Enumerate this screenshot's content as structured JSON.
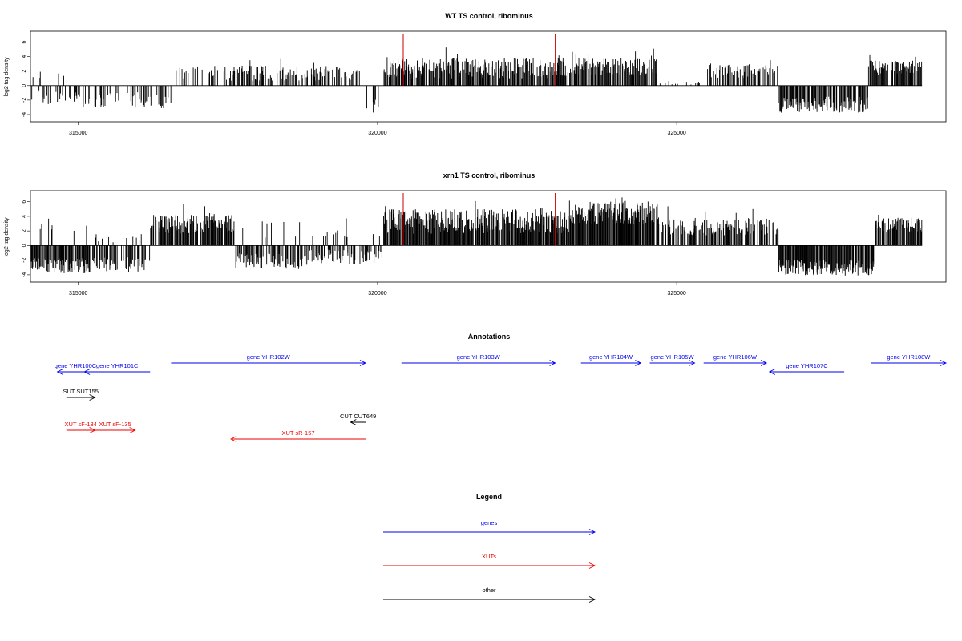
{
  "colors": {
    "gene": "#0000ee",
    "xut": "#ee0000",
    "other": "#000000",
    "marker": "#cc0000",
    "bar": "#000000"
  },
  "chart_data": [
    {
      "type": "bar",
      "title": "WT TS control, ribominus",
      "ylabel": "log2 tag density",
      "xlim": [
        314200,
        329500
      ],
      "ylim": [
        -5,
        7.5
      ],
      "yticks": [
        -4,
        -2,
        0,
        2,
        4,
        6
      ],
      "xticks": [
        315000,
        320000,
        325000
      ],
      "markers": [
        320430,
        322970
      ],
      "segments": [
        {
          "x": [
            314200,
            314900
          ],
          "level": 1.6,
          "var": 0.6,
          "neg": true,
          "negLevel": 1.4,
          "density": 0.35
        },
        {
          "x": [
            314900,
            316600
          ],
          "level": 0.2,
          "var": 0.2,
          "neg": true,
          "negLevel": 1.7,
          "density": 0.3
        },
        {
          "x": [
            316600,
            319700
          ],
          "level": 1.4,
          "var": 0.8,
          "neg": false,
          "negLevel": 0,
          "density": 0.4
        },
        {
          "x": [
            319700,
            320100
          ],
          "level": 0.3,
          "var": 0.3,
          "neg": true,
          "negLevel": 2.5,
          "density": 0.15
        },
        {
          "x": [
            320100,
            323200
          ],
          "level": 2.0,
          "var": 1.1,
          "neg": false,
          "negLevel": 0,
          "density": 0.7
        },
        {
          "x": [
            323200,
            324700
          ],
          "level": 2.3,
          "var": 0.9,
          "neg": false,
          "negLevel": 0,
          "density": 0.7
        },
        {
          "x": [
            324700,
            325500
          ],
          "level": 0.3,
          "var": 0.2,
          "neg": false,
          "negLevel": 0,
          "density": 0.1
        },
        {
          "x": [
            325500,
            326700
          ],
          "level": 1.7,
          "var": 0.7,
          "neg": false,
          "negLevel": 0,
          "density": 0.45
        },
        {
          "x": [
            326700,
            328200
          ],
          "level": 0.1,
          "var": 0.1,
          "neg": true,
          "negLevel": 2.3,
          "density": 0.75
        },
        {
          "x": [
            328200,
            329100
          ],
          "level": 2.2,
          "var": 0.8,
          "neg": false,
          "negLevel": 0,
          "density": 0.75
        }
      ]
    },
    {
      "type": "bar",
      "title": "xrn1 TS control, ribominus",
      "ylabel": "log2 tag density",
      "xlim": [
        314200,
        329500
      ],
      "ylim": [
        -5,
        7.5
      ],
      "yticks": [
        -4,
        -2,
        0,
        2,
        4,
        6
      ],
      "xticks": [
        315000,
        320000,
        325000
      ],
      "markers": [
        320430,
        322970
      ],
      "segments": [
        {
          "x": [
            314200,
            315200
          ],
          "level": 2.6,
          "var": 1.1,
          "neg": true,
          "negLevel": 2.4,
          "density": 0.85
        },
        {
          "x": [
            315200,
            316200
          ],
          "level": 0.8,
          "var": 0.5,
          "neg": true,
          "negLevel": 2.2,
          "density": 0.6
        },
        {
          "x": [
            316200,
            317600
          ],
          "level": 2.5,
          "var": 1.0,
          "neg": false,
          "negLevel": 0,
          "density": 0.85
        },
        {
          "x": [
            317600,
            318800
          ],
          "level": 1.9,
          "var": 1.0,
          "neg": true,
          "negLevel": 1.8,
          "density": 0.6
        },
        {
          "x": [
            318800,
            320100
          ],
          "level": 1.5,
          "var": 0.8,
          "neg": true,
          "negLevel": 1.3,
          "density": 0.5
        },
        {
          "x": [
            320100,
            323300
          ],
          "level": 2.8,
          "var": 1.3,
          "neg": false,
          "negLevel": 0,
          "density": 0.85
        },
        {
          "x": [
            323300,
            324700
          ],
          "level": 4.0,
          "var": 1.2,
          "neg": false,
          "negLevel": 0,
          "density": 0.95
        },
        {
          "x": [
            324700,
            326700
          ],
          "level": 2.2,
          "var": 0.9,
          "neg": false,
          "negLevel": 0,
          "density": 0.6
        },
        {
          "x": [
            326700,
            328300
          ],
          "level": 0.3,
          "var": 0.2,
          "neg": true,
          "negLevel": 2.7,
          "density": 0.85
        },
        {
          "x": [
            328300,
            329100
          ],
          "level": 2.5,
          "var": 0.8,
          "neg": false,
          "negLevel": 0,
          "density": 0.8
        }
      ]
    }
  ],
  "annotations": {
    "title": "Annotations",
    "items": [
      {
        "label": "gene YHR100C",
        "type": "gene",
        "start": 315250,
        "end": 314650,
        "dir": "-",
        "row": 1
      },
      {
        "label": "gene YHR101C",
        "type": "gene",
        "start": 316200,
        "end": 315100,
        "dir": "-",
        "row": 1
      },
      {
        "label": "gene YHR102W",
        "type": "gene",
        "start": 316550,
        "end": 319800,
        "dir": "+",
        "row": 0
      },
      {
        "label": "gene YHR103W",
        "type": "gene",
        "start": 320400,
        "end": 322970,
        "dir": "+",
        "row": 0
      },
      {
        "label": "gene YHR104W",
        "type": "gene",
        "start": 323400,
        "end": 324400,
        "dir": "+",
        "row": 0
      },
      {
        "label": "gene YHR105W",
        "type": "gene",
        "start": 324550,
        "end": 325300,
        "dir": "+",
        "row": 0
      },
      {
        "label": "gene YHR106W",
        "type": "gene",
        "start": 325450,
        "end": 326500,
        "dir": "+",
        "row": 0
      },
      {
        "label": "gene YHR107C",
        "type": "gene",
        "start": 327800,
        "end": 326550,
        "dir": "-",
        "row": 1
      },
      {
        "label": "gene YHR108W",
        "type": "gene",
        "start": 328250,
        "end": 329500,
        "dir": "+",
        "row": 0
      },
      {
        "label": "SUT SUT155",
        "type": "other",
        "start": 314800,
        "end": 315280,
        "dir": "+",
        "row": 2
      },
      {
        "label": "CUT CUT649",
        "type": "other",
        "start": 319800,
        "end": 319550,
        "dir": "-",
        "row": 3
      },
      {
        "label": "XUT sF-134",
        "type": "xut",
        "start": 314800,
        "end": 315280,
        "dir": "+",
        "row": 4
      },
      {
        "label": "XUT sF-135",
        "type": "xut",
        "start": 315280,
        "end": 315950,
        "dir": "+",
        "row": 4
      },
      {
        "label": "XUT sR-157",
        "type": "xut",
        "start": 319800,
        "end": 317550,
        "dir": "-",
        "row": 5
      }
    ]
  },
  "legend": {
    "title": "Legend",
    "entries": [
      {
        "label": "genes",
        "type": "gene"
      },
      {
        "label": "XUTs",
        "type": "xut"
      },
      {
        "label": "other",
        "type": "other"
      }
    ]
  }
}
